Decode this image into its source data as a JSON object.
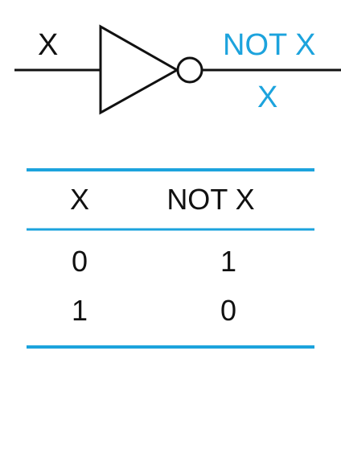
{
  "gate": {
    "input_label": "X",
    "output_label": "NOT X",
    "output_label_alt": "X"
  },
  "truth_table": {
    "headers": [
      "X",
      "NOT X"
    ],
    "rows": [
      [
        "0",
        "1"
      ],
      [
        "1",
        "0"
      ]
    ]
  },
  "colors": {
    "accent": "#1ca3dd",
    "ink": "#111111"
  }
}
